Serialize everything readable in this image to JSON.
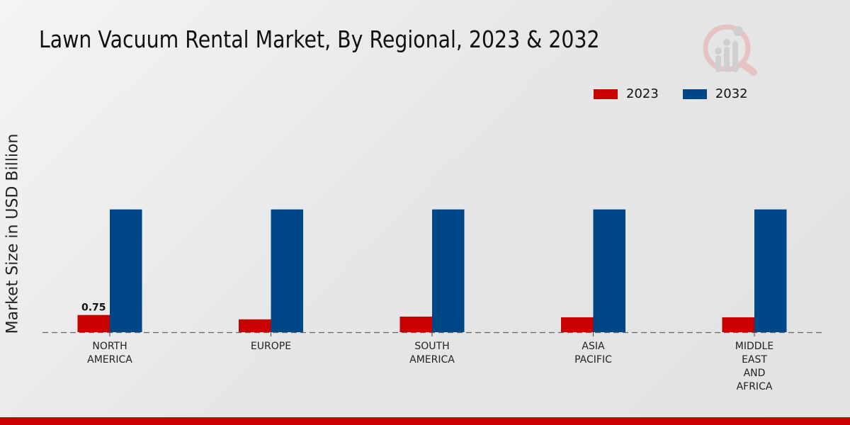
{
  "title": "Lawn Vacuum Rental Market, By Regional, 2023 & 2032",
  "colors": {
    "2023": "#c80000",
    "2032": "#004788"
  },
  "chart_data": {
    "type": "bar",
    "title": "Lawn Vacuum Rental Market, By Regional, 2023 & 2032",
    "xlabel": "",
    "ylabel": "Market Size in USD Billion",
    "ylim": [
      0,
      9
    ],
    "categories": [
      [
        "NORTH",
        "AMERICA"
      ],
      [
        "EUROPE"
      ],
      [
        "SOUTH",
        "AMERICA"
      ],
      [
        "ASIA",
        "PACIFIC"
      ],
      [
        "MIDDLE",
        "EAST",
        "AND",
        "AFRICA"
      ]
    ],
    "series": [
      {
        "name": "2023",
        "values": [
          0.75,
          0.56,
          0.68,
          0.65,
          0.65
        ]
      },
      {
        "name": "2032",
        "values": [
          5.35,
          5.35,
          5.35,
          5.35,
          5.35
        ]
      }
    ],
    "data_labels": [
      {
        "series": "2023",
        "index": 0,
        "text": "0.75"
      }
    ],
    "legend_position": "top-right",
    "grid": false
  }
}
